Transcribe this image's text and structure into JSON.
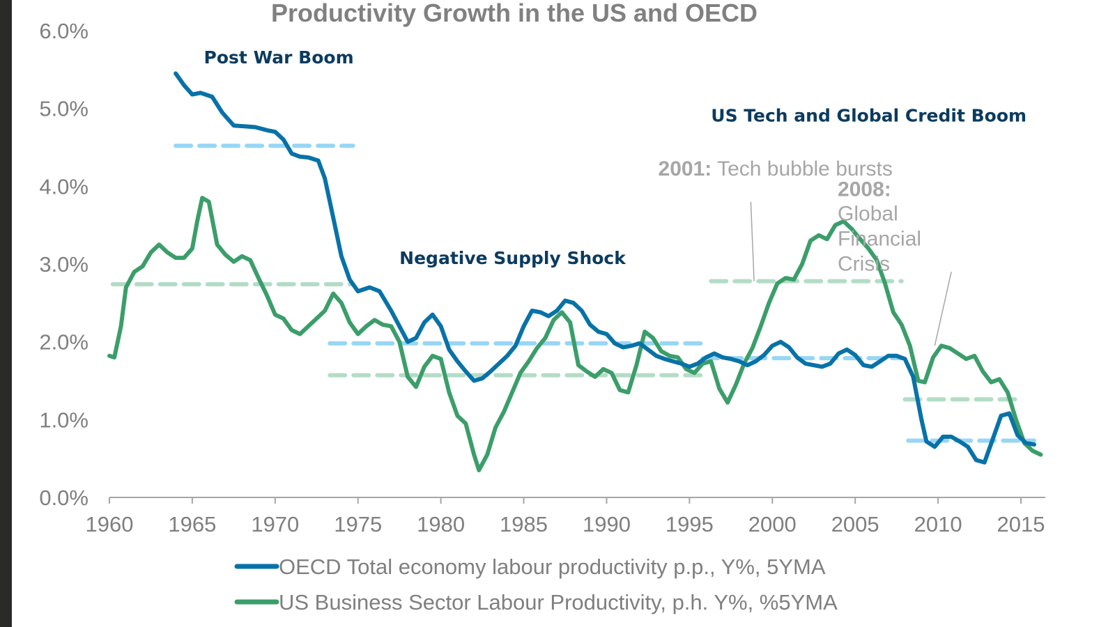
{
  "chart_data": {
    "type": "line",
    "title": "Productivity Growth in the US and OECD",
    "xlabel": "",
    "ylabel": "",
    "xlim": [
      1960,
      2016.5
    ],
    "ylim": [
      0,
      6
    ],
    "x_ticks": [
      "1960",
      "1965",
      "1970",
      "1975",
      "1980",
      "1985",
      "1990",
      "1995",
      "2000",
      "2005",
      "2010",
      "2015"
    ],
    "y_ticks": [
      "0.0%",
      "1.0%",
      "2.0%",
      "3.0%",
      "4.0%",
      "5.0%",
      "6.0%"
    ],
    "grid": false,
    "legend_position": "bottom",
    "series": [
      {
        "name": "OECD Total economy labour productivity p.p., Y%, 5YMA",
        "color": "#0872a8",
        "points": [
          [
            1964.0,
            5.45
          ],
          [
            1964.5,
            5.3
          ],
          [
            1965.0,
            5.18
          ],
          [
            1965.5,
            5.2
          ],
          [
            1966.2,
            5.15
          ],
          [
            1966.8,
            4.95
          ],
          [
            1967.5,
            4.78
          ],
          [
            1968.2,
            4.77
          ],
          [
            1968.8,
            4.76
          ],
          [
            1969.5,
            4.72
          ],
          [
            1970.0,
            4.7
          ],
          [
            1970.5,
            4.6
          ],
          [
            1971.0,
            4.42
          ],
          [
            1971.5,
            4.38
          ],
          [
            1972.0,
            4.37
          ],
          [
            1972.6,
            4.33
          ],
          [
            1973.0,
            4.1
          ],
          [
            1973.5,
            3.6
          ],
          [
            1974.0,
            3.1
          ],
          [
            1974.5,
            2.8
          ],
          [
            1975.0,
            2.65
          ],
          [
            1975.7,
            2.7
          ],
          [
            1976.3,
            2.65
          ],
          [
            1977.0,
            2.4
          ],
          [
            1977.5,
            2.2
          ],
          [
            1978.0,
            2.0
          ],
          [
            1978.5,
            2.05
          ],
          [
            1979.0,
            2.25
          ],
          [
            1979.5,
            2.35
          ],
          [
            1980.0,
            2.2
          ],
          [
            1980.5,
            1.9
          ],
          [
            1981.0,
            1.75
          ],
          [
            1981.5,
            1.62
          ],
          [
            1982.0,
            1.5
          ],
          [
            1982.5,
            1.53
          ],
          [
            1983.0,
            1.62
          ],
          [
            1983.5,
            1.72
          ],
          [
            1984.0,
            1.82
          ],
          [
            1984.5,
            1.95
          ],
          [
            1985.0,
            2.2
          ],
          [
            1985.5,
            2.4
          ],
          [
            1986.0,
            2.38
          ],
          [
            1986.5,
            2.33
          ],
          [
            1987.0,
            2.4
          ],
          [
            1987.5,
            2.53
          ],
          [
            1988.0,
            2.5
          ],
          [
            1988.5,
            2.4
          ],
          [
            1989.0,
            2.22
          ],
          [
            1989.5,
            2.13
          ],
          [
            1990.0,
            2.1
          ],
          [
            1990.5,
            1.98
          ],
          [
            1991.0,
            1.93
          ],
          [
            1991.5,
            1.95
          ],
          [
            1992.0,
            1.98
          ],
          [
            1992.5,
            1.9
          ],
          [
            1993.0,
            1.82
          ],
          [
            1993.5,
            1.78
          ],
          [
            1994.0,
            1.75
          ],
          [
            1994.5,
            1.72
          ],
          [
            1995.0,
            1.68
          ],
          [
            1995.5,
            1.72
          ],
          [
            1996.0,
            1.8
          ],
          [
            1996.5,
            1.85
          ],
          [
            1997.0,
            1.8
          ],
          [
            1997.5,
            1.78
          ],
          [
            1998.0,
            1.75
          ],
          [
            1998.5,
            1.7
          ],
          [
            1999.0,
            1.75
          ],
          [
            1999.5,
            1.83
          ],
          [
            2000.0,
            1.95
          ],
          [
            2000.5,
            2.0
          ],
          [
            2001.0,
            1.93
          ],
          [
            2001.5,
            1.8
          ],
          [
            2002.0,
            1.72
          ],
          [
            2002.5,
            1.7
          ],
          [
            2003.0,
            1.68
          ],
          [
            2003.5,
            1.72
          ],
          [
            2004.0,
            1.85
          ],
          [
            2004.5,
            1.9
          ],
          [
            2005.0,
            1.83
          ],
          [
            2005.5,
            1.7
          ],
          [
            2006.0,
            1.68
          ],
          [
            2006.5,
            1.75
          ],
          [
            2007.0,
            1.82
          ],
          [
            2007.5,
            1.82
          ],
          [
            2008.0,
            1.78
          ],
          [
            2008.5,
            1.55
          ],
          [
            2009.0,
            1.0
          ],
          [
            2009.3,
            0.72
          ],
          [
            2009.8,
            0.65
          ],
          [
            2010.3,
            0.78
          ],
          [
            2010.8,
            0.78
          ],
          [
            2011.3,
            0.72
          ],
          [
            2011.8,
            0.65
          ],
          [
            2012.3,
            0.48
          ],
          [
            2012.8,
            0.45
          ],
          [
            2013.3,
            0.75
          ],
          [
            2013.8,
            1.05
          ],
          [
            2014.3,
            1.08
          ],
          [
            2014.8,
            0.8
          ],
          [
            2015.3,
            0.7
          ],
          [
            2015.8,
            0.68
          ]
        ],
        "period_averages": [
          {
            "from": 1964.0,
            "to": 1974.7,
            "value": 4.52
          },
          {
            "from": 1973.3,
            "to": 1995.8,
            "value": 1.98
          },
          {
            "from": 1995.8,
            "to": 2007.8,
            "value": 1.79
          },
          {
            "from": 2008.2,
            "to": 2015.8,
            "value": 0.73
          }
        ]
      },
      {
        "name": "US Business Sector Labour Productivity, p.h. Y%, %5YMA",
        "color": "#3b9e6a",
        "points": [
          [
            1960.0,
            1.82
          ],
          [
            1960.3,
            1.8
          ],
          [
            1960.7,
            2.2
          ],
          [
            1961.0,
            2.7
          ],
          [
            1961.5,
            2.9
          ],
          [
            1962.0,
            2.97
          ],
          [
            1962.5,
            3.15
          ],
          [
            1963.0,
            3.25
          ],
          [
            1963.5,
            3.15
          ],
          [
            1964.0,
            3.08
          ],
          [
            1964.5,
            3.08
          ],
          [
            1965.0,
            3.2
          ],
          [
            1965.3,
            3.55
          ],
          [
            1965.6,
            3.85
          ],
          [
            1966.0,
            3.8
          ],
          [
            1966.5,
            3.25
          ],
          [
            1967.0,
            3.12
          ],
          [
            1967.5,
            3.03
          ],
          [
            1968.0,
            3.1
          ],
          [
            1968.5,
            3.05
          ],
          [
            1969.0,
            2.82
          ],
          [
            1969.5,
            2.6
          ],
          [
            1970.0,
            2.35
          ],
          [
            1970.5,
            2.3
          ],
          [
            1971.0,
            2.15
          ],
          [
            1971.5,
            2.1
          ],
          [
            1972.0,
            2.2
          ],
          [
            1972.5,
            2.3
          ],
          [
            1973.0,
            2.4
          ],
          [
            1973.5,
            2.62
          ],
          [
            1974.0,
            2.5
          ],
          [
            1974.5,
            2.25
          ],
          [
            1975.0,
            2.1
          ],
          [
            1975.5,
            2.2
          ],
          [
            1976.0,
            2.28
          ],
          [
            1976.5,
            2.22
          ],
          [
            1977.0,
            2.2
          ],
          [
            1977.5,
            2.0
          ],
          [
            1978.0,
            1.55
          ],
          [
            1978.5,
            1.42
          ],
          [
            1979.0,
            1.68
          ],
          [
            1979.5,
            1.82
          ],
          [
            1980.0,
            1.78
          ],
          [
            1980.5,
            1.35
          ],
          [
            1981.0,
            1.05
          ],
          [
            1981.5,
            0.95
          ],
          [
            1982.0,
            0.55
          ],
          [
            1982.3,
            0.35
          ],
          [
            1982.8,
            0.55
          ],
          [
            1983.3,
            0.9
          ],
          [
            1983.8,
            1.1
          ],
          [
            1984.3,
            1.35
          ],
          [
            1984.8,
            1.6
          ],
          [
            1985.3,
            1.75
          ],
          [
            1985.8,
            1.92
          ],
          [
            1986.3,
            2.05
          ],
          [
            1986.8,
            2.28
          ],
          [
            1987.3,
            2.38
          ],
          [
            1987.8,
            2.25
          ],
          [
            1988.3,
            1.7
          ],
          [
            1988.8,
            1.62
          ],
          [
            1989.3,
            1.55
          ],
          [
            1989.8,
            1.65
          ],
          [
            1990.3,
            1.6
          ],
          [
            1990.8,
            1.38
          ],
          [
            1991.3,
            1.35
          ],
          [
            1991.8,
            1.7
          ],
          [
            1992.3,
            2.13
          ],
          [
            1992.8,
            2.05
          ],
          [
            1993.3,
            1.88
          ],
          [
            1993.8,
            1.82
          ],
          [
            1994.3,
            1.8
          ],
          [
            1994.8,
            1.65
          ],
          [
            1995.3,
            1.6
          ],
          [
            1995.8,
            1.72
          ],
          [
            1996.3,
            1.75
          ],
          [
            1996.8,
            1.4
          ],
          [
            1997.3,
            1.22
          ],
          [
            1997.8,
            1.45
          ],
          [
            1998.3,
            1.72
          ],
          [
            1998.8,
            1.92
          ],
          [
            1999.3,
            2.2
          ],
          [
            1999.8,
            2.5
          ],
          [
            2000.3,
            2.75
          ],
          [
            2000.8,
            2.82
          ],
          [
            2001.3,
            2.8
          ],
          [
            2001.8,
            3.0
          ],
          [
            2002.3,
            3.3
          ],
          [
            2002.8,
            3.37
          ],
          [
            2003.3,
            3.32
          ],
          [
            2003.8,
            3.5
          ],
          [
            2004.3,
            3.55
          ],
          [
            2004.8,
            3.45
          ],
          [
            2005.3,
            3.32
          ],
          [
            2005.8,
            3.2
          ],
          [
            2006.3,
            3.05
          ],
          [
            2006.8,
            2.75
          ],
          [
            2007.3,
            2.38
          ],
          [
            2007.8,
            2.22
          ],
          [
            2008.3,
            1.95
          ],
          [
            2008.8,
            1.5
          ],
          [
            2009.2,
            1.48
          ],
          [
            2009.7,
            1.8
          ],
          [
            2010.2,
            1.95
          ],
          [
            2010.7,
            1.92
          ],
          [
            2011.2,
            1.85
          ],
          [
            2011.7,
            1.78
          ],
          [
            2012.2,
            1.82
          ],
          [
            2012.7,
            1.62
          ],
          [
            2013.2,
            1.48
          ],
          [
            2013.7,
            1.52
          ],
          [
            2014.2,
            1.35
          ],
          [
            2014.7,
            1.0
          ],
          [
            2015.2,
            0.7
          ],
          [
            2015.7,
            0.6
          ],
          [
            2016.2,
            0.55
          ]
        ],
        "period_averages": [
          {
            "from": 1960.2,
            "to": 1974.7,
            "value": 2.74
          },
          {
            "from": 1973.3,
            "to": 1995.8,
            "value": 1.57
          },
          {
            "from": 1996.3,
            "to": 2007.8,
            "value": 2.78
          },
          {
            "from": 2008.0,
            "to": 2015.0,
            "value": 1.26
          }
        ]
      }
    ],
    "annotations": [
      {
        "kind": "era",
        "text": "Post War Boom",
        "x": 1965.7,
        "y": 5.58
      },
      {
        "kind": "era",
        "text": "Negative Supply Shock",
        "x": 1977.5,
        "y": 3.0
      },
      {
        "kind": "era",
        "text": "US Tech and  Global Credit Boom",
        "x": 1996.3,
        "y": 4.83
      },
      {
        "kind": "event",
        "bold": "2001:",
        "text": " Tech bubble bursts",
        "x": 1993.2,
        "y": 4.12,
        "pointer_to": [
          1998.9,
          2.78
        ]
      },
      {
        "kind": "event",
        "bold": "2008:",
        "lines": [
          "Global",
          "Financial",
          "Crisis"
        ],
        "x": 2003.9,
        "y": 3.8,
        "pointer_to": [
          2009.8,
          1.95
        ]
      }
    ]
  },
  "legend": [
    {
      "label": "OECD Total economy labour productivity p.p., Y%, 5YMA",
      "color": "#0872a8"
    },
    {
      "label": "US Business Sector Labour Productivity, p.h. Y%, %5YMA",
      "color": "#3b9e6a"
    }
  ],
  "colors": {
    "oecd_line": "#0872a8",
    "us_line": "#3b9e6a",
    "oecd_avg": "#97d6f5",
    "us_avg": "#b3dcc6",
    "axis": "#a6a6a6"
  }
}
